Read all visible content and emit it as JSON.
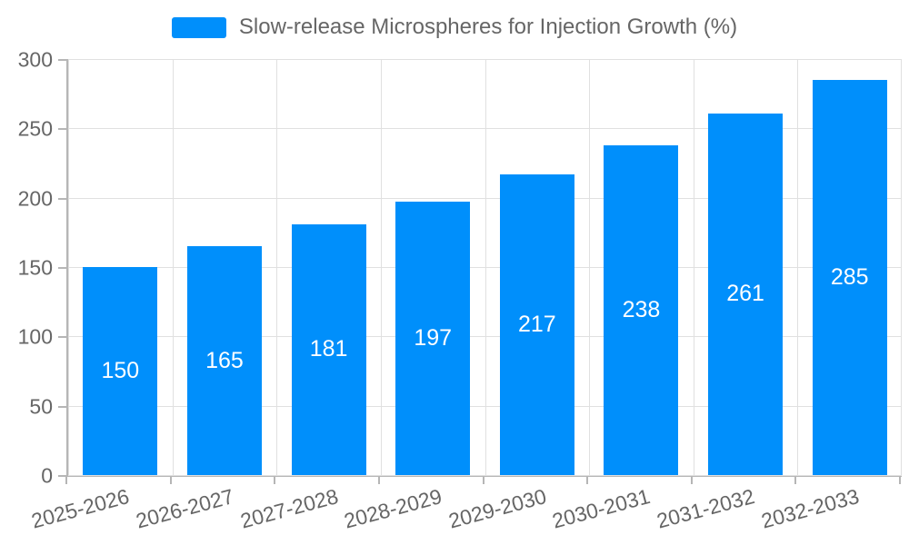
{
  "chart_data": {
    "type": "bar",
    "title": "Slow-release Microspheres for Injection Growth (%)",
    "categories": [
      "2025-2026",
      "2026-2027",
      "2027-2028",
      "2028-2029",
      "2029-2030",
      "2030-2031",
      "2031-2032",
      "2032-2033"
    ],
    "series": [
      {
        "name": "Slow-release Microspheres for Injection Growth (%)",
        "values": [
          150,
          165,
          181,
          197,
          217,
          238,
          261,
          285
        ]
      }
    ],
    "xlabel": "",
    "ylabel": "",
    "ylim": [
      0,
      300
    ],
    "yticks": [
      0,
      50,
      100,
      150,
      200,
      250,
      300
    ],
    "grid": true,
    "legend_position": "top",
    "value_labels": "inside-center",
    "colors": {
      "bar": "#008FFB",
      "grid": "#e0e0e0",
      "axis": "#b6b6b6",
      "tick_label": "#666666",
      "value_label": "#ffffff",
      "background": "#ffffff"
    }
  }
}
